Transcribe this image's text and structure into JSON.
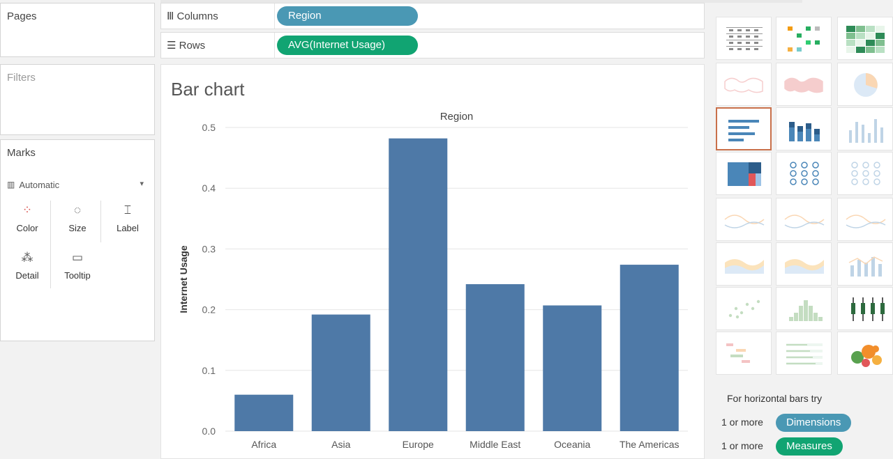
{
  "panes": {
    "pages_title": "Pages",
    "filters_title": "Filters",
    "marks_title": "Marks",
    "marks_type": "Automatic",
    "mark_buttons": [
      "Color",
      "Size",
      "Label",
      "Detail",
      "Tooltip"
    ]
  },
  "shelves": {
    "columns_label": "Columns",
    "rows_label": "Rows",
    "columns_pill": "Region",
    "rows_pill": "AVG(Internet Usage)"
  },
  "sheet": {
    "title": "Bar chart"
  },
  "chart_data": {
    "type": "bar",
    "title": "Region",
    "xlabel": "",
    "ylabel": "Internet Usage",
    "categories": [
      "Africa",
      "Asia",
      "Europe",
      "Middle East",
      "Oceania",
      "The Americas"
    ],
    "values": [
      0.06,
      0.192,
      0.482,
      0.242,
      0.207,
      0.274
    ],
    "ylim": [
      0,
      0.5
    ],
    "yticks": [
      "0.0",
      "0.1",
      "0.2",
      "0.3",
      "0.4",
      "0.5"
    ],
    "grid": true,
    "color": "#4e79a7"
  },
  "show_me": {
    "hint": "For horizontal bars try",
    "dim_hint": "1 or more",
    "dim_label": "Dimensions",
    "mea_hint": "1 or more",
    "mea_label": "Measures",
    "selected": "horizontal-bars",
    "colors": {
      "dimension": "#4a98b4",
      "measure": "#11a472",
      "selected_border": "#c9704a"
    }
  }
}
